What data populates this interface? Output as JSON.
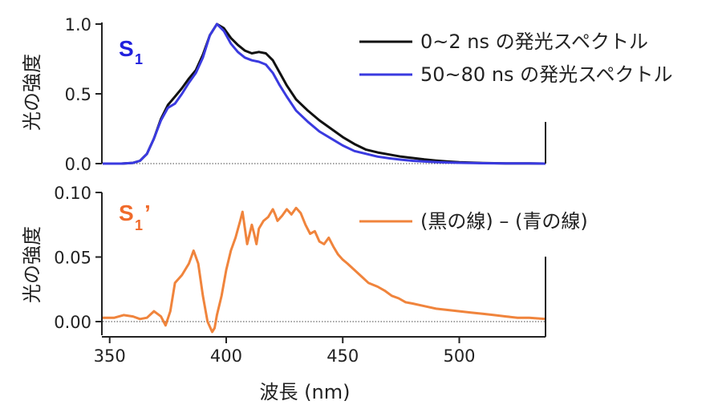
{
  "colors": {
    "black_series": "#111111",
    "blue_series": "#3a3ae0",
    "orange_series": "#f0843c",
    "panel1_tag": "#2020dd",
    "panel2_tag": "#f06a2a"
  },
  "xlabel": "波長 (nm)",
  "chart_data": [
    {
      "type": "line",
      "panel_tag": "S",
      "panel_tag_sub": "1",
      "ylabel": "光の強度",
      "xlim": [
        347,
        537
      ],
      "ylim": [
        0,
        1.0
      ],
      "x_ticks": [
        350,
        400,
        450,
        500
      ],
      "y_ticks": [
        "0.0",
        "0.5",
        "1.0"
      ],
      "y_tick_values": [
        0,
        0.5,
        1.0
      ],
      "legend_position": "top-right",
      "series": [
        {
          "name": "0~2 ns の発光スペクトル",
          "color": "#111111",
          "x": [
            347,
            355,
            360,
            363,
            366,
            369,
            372,
            375,
            378,
            381,
            384,
            387,
            390,
            393,
            396,
            399,
            402,
            405,
            408,
            411,
            414,
            417,
            420,
            423,
            426,
            430,
            435,
            440,
            445,
            450,
            455,
            460,
            465,
            470,
            475,
            480,
            485,
            490,
            495,
            500,
            505,
            510,
            520,
            530,
            537
          ],
          "y": [
            0,
            0,
            0.005,
            0.02,
            0.07,
            0.18,
            0.32,
            0.42,
            0.48,
            0.54,
            0.61,
            0.67,
            0.78,
            0.92,
            1.0,
            0.97,
            0.9,
            0.85,
            0.81,
            0.79,
            0.8,
            0.79,
            0.74,
            0.65,
            0.56,
            0.46,
            0.38,
            0.31,
            0.25,
            0.19,
            0.14,
            0.1,
            0.08,
            0.065,
            0.05,
            0.04,
            0.03,
            0.022,
            0.015,
            0.01,
            0.007,
            0.004,
            0.002,
            0.001,
            0
          ]
        },
        {
          "name": "50~80 ns の発光スペクトル",
          "color": "#3a3ae0",
          "x": [
            347,
            355,
            360,
            363,
            366,
            369,
            372,
            375,
            378,
            381,
            384,
            387,
            390,
            393,
            396,
            399,
            402,
            405,
            408,
            411,
            414,
            417,
            420,
            423,
            426,
            430,
            435,
            440,
            445,
            450,
            455,
            460,
            465,
            470,
            475,
            480,
            485,
            490,
            495,
            500,
            505,
            510,
            520,
            530,
            537
          ],
          "y": [
            0,
            0,
            0.005,
            0.02,
            0.07,
            0.18,
            0.31,
            0.4,
            0.43,
            0.5,
            0.58,
            0.65,
            0.76,
            0.92,
            1.0,
            0.95,
            0.86,
            0.8,
            0.76,
            0.74,
            0.73,
            0.71,
            0.65,
            0.56,
            0.48,
            0.38,
            0.3,
            0.23,
            0.18,
            0.13,
            0.09,
            0.07,
            0.05,
            0.038,
            0.028,
            0.02,
            0.015,
            0.011,
            0.008,
            0.006,
            0.004,
            0.003,
            0.002,
            0.001,
            0
          ]
        }
      ]
    },
    {
      "type": "line",
      "panel_tag": "S",
      "panel_tag_sub": "1",
      "panel_tag_prime": "’",
      "ylabel": "光の強度",
      "xlim": [
        347,
        537
      ],
      "ylim": [
        -0.005,
        0.1
      ],
      "x_ticks": [
        350,
        400,
        450,
        500
      ],
      "y_ticks": [
        "0.00",
        "0.05",
        "0.10"
      ],
      "y_tick_values": [
        0,
        0.05,
        0.1
      ],
      "legend_position": "top-right",
      "series": [
        {
          "name": "(黒の線) – (青の線)",
          "color": "#f0843c",
          "x": [
            347,
            352,
            356,
            360,
            363,
            366,
            369,
            372,
            374,
            376,
            378,
            381,
            384,
            386,
            388,
            390,
            392,
            394,
            395,
            396,
            398,
            400,
            402,
            404,
            406,
            407,
            409,
            411,
            412,
            413,
            414,
            416,
            418,
            420,
            421,
            422,
            424,
            426,
            428,
            430,
            431,
            432,
            434,
            436,
            438,
            440,
            442,
            444,
            446,
            448,
            450,
            452,
            455,
            458,
            461,
            465,
            468,
            471,
            474,
            477,
            480,
            485,
            490,
            495,
            500,
            505,
            510,
            515,
            520,
            525,
            530,
            537
          ],
          "y": [
            0.003,
            0.003,
            0.005,
            0.004,
            0.002,
            0.003,
            0.008,
            0.004,
            -0.003,
            0.008,
            0.03,
            0.036,
            0.045,
            0.055,
            0.045,
            0.02,
            0.0,
            -0.008,
            -0.005,
            0.005,
            0.02,
            0.04,
            0.055,
            0.065,
            0.078,
            0.085,
            0.06,
            0.075,
            0.068,
            0.06,
            0.072,
            0.078,
            0.081,
            0.087,
            0.083,
            0.078,
            0.082,
            0.087,
            0.083,
            0.088,
            0.086,
            0.084,
            0.075,
            0.068,
            0.07,
            0.062,
            0.06,
            0.065,
            0.058,
            0.052,
            0.048,
            0.045,
            0.04,
            0.035,
            0.03,
            0.027,
            0.024,
            0.02,
            0.018,
            0.015,
            0.014,
            0.012,
            0.01,
            0.009,
            0.008,
            0.007,
            0.006,
            0.005,
            0.004,
            0.003,
            0.003,
            0.002
          ]
        }
      ]
    }
  ]
}
